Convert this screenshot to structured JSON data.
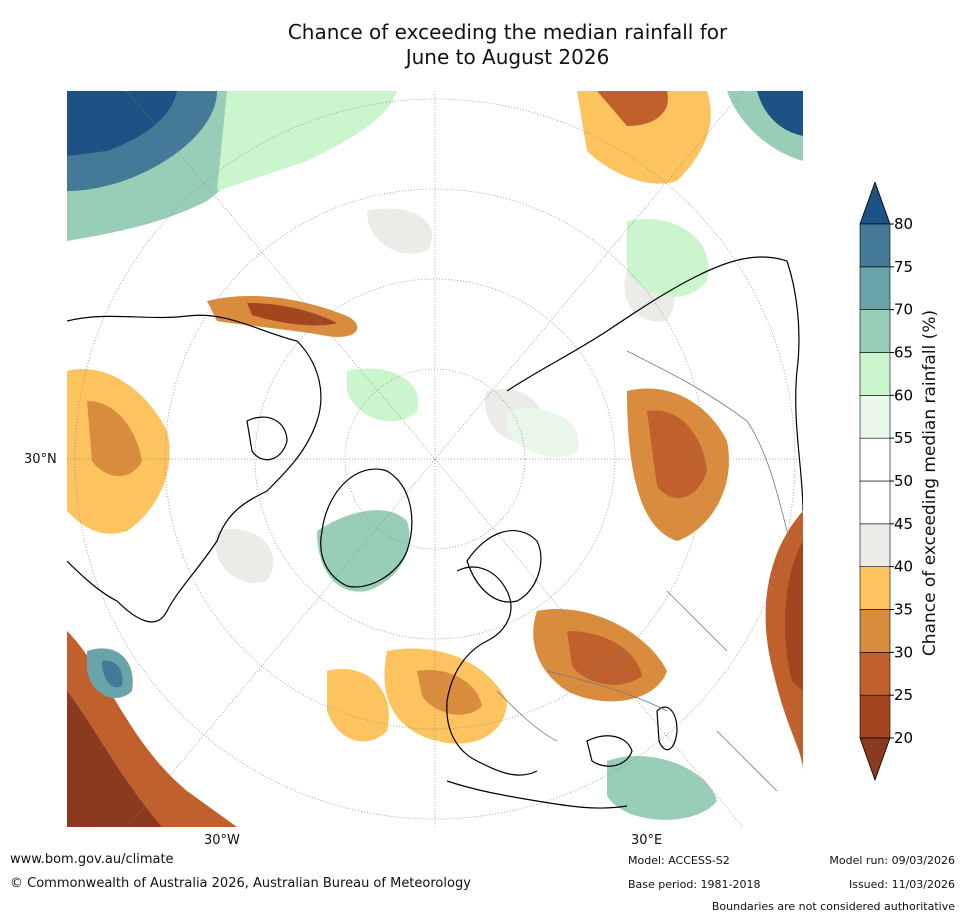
{
  "title_line1": "Chance of exceeding the median rainfall for",
  "title_line2": "June to August 2026",
  "map": {
    "lat_label": "30°N",
    "lon_labels": [
      "30°W",
      "30°E"
    ]
  },
  "colorbar": {
    "label": "Chance of exceeding median rainfall (%)",
    "ticks": [
      "20",
      "25",
      "30",
      "35",
      "40",
      "45",
      "50",
      "55",
      "60",
      "65",
      "70",
      "75",
      "80"
    ],
    "colors": {
      "under": "#8b3a1f",
      "bins": [
        "#a3451f",
        "#c0602c",
        "#d98c3d",
        "#fdc35f",
        "#ecebe7",
        "#ffffff",
        "#ffffff",
        "#e9f6ea",
        "#cbf5cd",
        "#98cdb7",
        "#6ba4a8",
        "#447998"
      ],
      "over": "#1d5285"
    }
  },
  "footer": {
    "website": "www.bom.gov.au/climate",
    "copyright": "© Commonwealth of Australia 2026, Australian Bureau of Meteorology",
    "model": "Model: ACCESS-S2",
    "base_period": "Base period: 1981-2018",
    "model_run": "Model run: 09/03/2026",
    "issued": "Issued: 11/03/2026",
    "disclaimer": "Boundaries are not considered authoritative"
  }
}
